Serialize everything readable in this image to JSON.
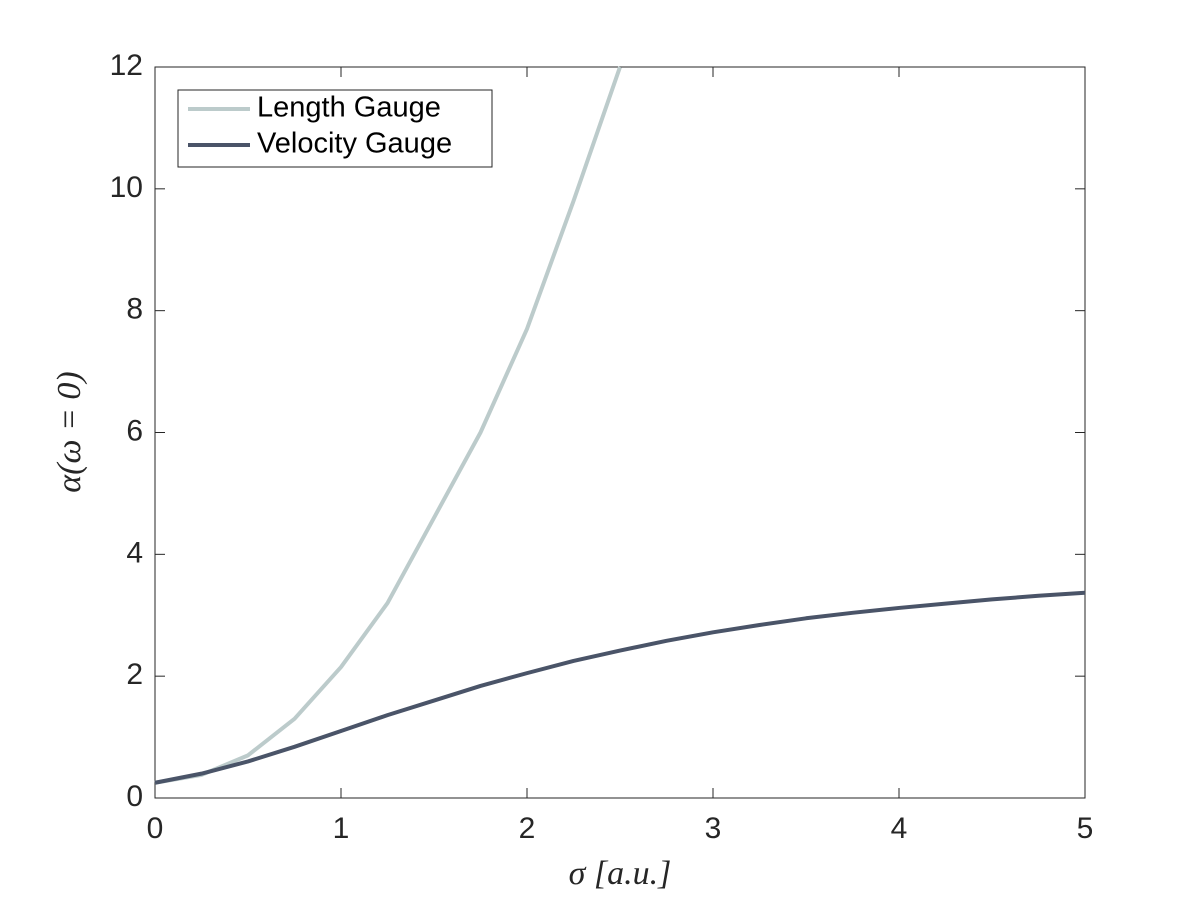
{
  "chart_data": {
    "type": "line",
    "xlabel": "σ [a.u.]",
    "ylabel": "α(ω = 0)",
    "x": [
      0,
      0.25,
      0.5,
      0.75,
      1,
      1.25,
      1.5,
      1.75,
      2,
      2.25,
      2.5,
      2.75,
      3,
      3.25,
      3.5,
      3.75,
      4,
      4.25,
      4.5,
      4.75,
      5
    ],
    "series": [
      {
        "name": "Length Gauge",
        "color": "#bccbcb",
        "values": [
          0.25,
          0.38,
          0.7,
          1.3,
          2.15,
          3.2,
          4.6,
          6.0,
          7.7,
          9.8,
          12,
          null,
          null,
          null,
          null,
          null,
          null,
          null,
          null,
          null,
          null
        ]
      },
      {
        "name": "Velocity Gauge",
        "color": "#4a5468",
        "values": [
          0.25,
          0.4,
          0.6,
          0.84,
          1.1,
          1.36,
          1.6,
          1.84,
          2.05,
          2.25,
          2.42,
          2.58,
          2.72,
          2.84,
          2.95,
          3.04,
          3.12,
          3.19,
          3.26,
          3.32,
          3.37
        ]
      }
    ],
    "xlim": [
      0,
      5
    ],
    "xticks": [
      0,
      1,
      2,
      3,
      4,
      5
    ],
    "ylim": [
      0,
      12
    ],
    "yticks": [
      0,
      2,
      4,
      6,
      8,
      10,
      12
    ],
    "grid": false,
    "legend": "upper left"
  }
}
